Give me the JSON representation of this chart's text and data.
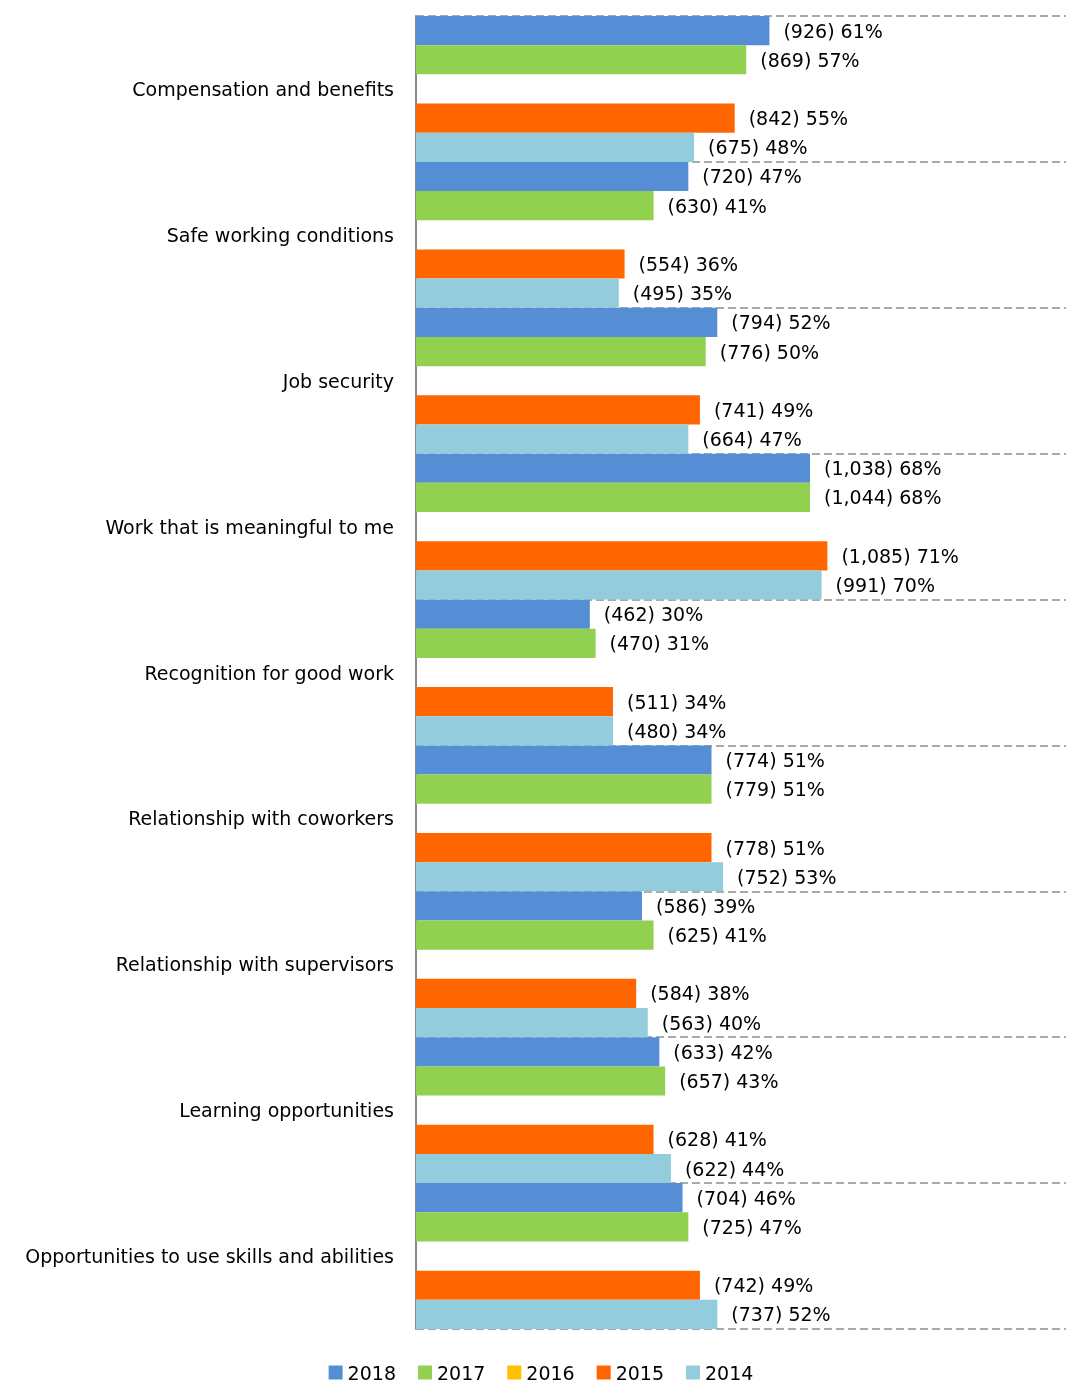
{
  "chart_data": {
    "type": "bar",
    "orientation": "horizontal",
    "categories": [
      "Compensation and benefits",
      "Safe working conditions",
      "Job security",
      "Work that is meaningful to me",
      "Recognition for good work",
      "Relationship with coworkers",
      "Relationship with supervisors",
      "Learning opportunities",
      "Opportunities to use skills and abilities"
    ],
    "series": [
      {
        "name": "2018",
        "color": "#558ed5",
        "values": [
          61,
          47,
          52,
          68,
          30,
          51,
          39,
          42,
          46
        ],
        "value_labels": [
          "(926) 61%",
          "(720) 47%",
          "(794) 52%",
          "(1,038) 68%",
          "(462) 30%",
          "(774) 51%",
          "(586) 39%",
          "(633) 42%",
          "(704) 46%"
        ]
      },
      {
        "name": "2017",
        "color": "#92d050",
        "values": [
          57,
          41,
          50,
          68,
          31,
          51,
          41,
          43,
          47
        ],
        "value_labels": [
          "(869) 57%",
          "(630) 41%",
          "(776) 50%",
          "(1,044) 68%",
          "(470) 31%",
          "(779) 51%",
          "(625) 41%",
          "(657) 43%",
          "(725) 47%"
        ]
      },
      {
        "name": "2016",
        "color": "#ffc000",
        "values": [
          null,
          null,
          null,
          null,
          null,
          null,
          null,
          null,
          null
        ]
      },
      {
        "name": "2015",
        "color": "#ff6600",
        "values": [
          55,
          36,
          49,
          71,
          34,
          51,
          38,
          41,
          49
        ],
        "value_labels": [
          "(842) 55%",
          "(554) 36%",
          "(741) 49%",
          "(1,085) 71%",
          "(511) 34%",
          "(778) 51%",
          "(584) 38%",
          "(628) 41%",
          "(742) 49%"
        ]
      },
      {
        "name": "2014",
        "color": "#93cddd",
        "values": [
          48,
          35,
          47,
          70,
          34,
          53,
          40,
          44,
          52
        ],
        "value_labels": [
          "(675) 48%",
          "(495) 35%",
          "(664) 47%",
          "(991) 70%",
          "(480) 34%",
          "(752) 53%",
          "(563) 40%",
          "(622) 44%",
          "(737) 52%"
        ]
      }
    ],
    "grid": "y",
    "legend": "bottom",
    "tick_labels": "y"
  }
}
